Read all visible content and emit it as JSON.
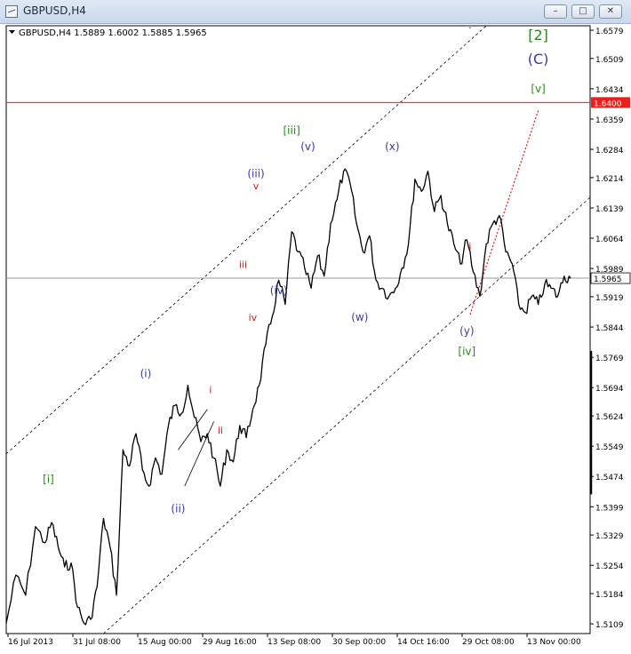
{
  "window": {
    "title": "GBPUSD,H4",
    "controls": {
      "minimize_icon": "minimize-icon",
      "maximize_icon": "maximize-icon",
      "close_icon": "close-icon"
    }
  },
  "chart_data": {
    "type": "candlestick",
    "info_line": "GBPUSD,H4  1.5889 1.6002 1.5885 1.5965",
    "ylim": [
      1.5085,
      1.659
    ],
    "y_ticks": [
      "1.5109",
      "1.5184",
      "1.5254",
      "1.5329",
      "1.5399",
      "1.5474",
      "1.5549",
      "1.5624",
      "1.5694",
      "1.5769",
      "1.5844",
      "1.5919",
      "1.5989",
      "1.6064",
      "1.6139",
      "1.6214",
      "1.6284",
      "1.6359",
      "1.6434",
      "1.6509",
      "1.6579"
    ],
    "x_ticks": [
      "16 Jul 2013",
      "31 Jul 08:00",
      "15 Aug 00:00",
      "29 Aug 16:00",
      "13 Sep 08:00",
      "30 Sep 00:00",
      "14 Oct 16:00",
      "29 Oct 08:00",
      "13 Nov 00:00"
    ],
    "current_price": "1.5965",
    "resistance_level": "1.6400",
    "colors": {
      "price": "#000000",
      "resistance": "#e8211c",
      "current": "#9a9a9a",
      "projection": "#d21f1f",
      "wave_major": "#2a8a1a",
      "wave_minor": "#3a3aa0",
      "wave_sub": "#c0201c"
    },
    "price_path": [
      [
        0,
        1.511
      ],
      [
        1.5,
        1.523
      ],
      [
        3,
        1.518
      ],
      [
        4.5,
        1.535
      ],
      [
        6,
        1.531
      ],
      [
        7,
        1.536
      ],
      [
        8,
        1.53
      ],
      [
        9,
        1.525
      ],
      [
        10,
        1.526
      ],
      [
        11,
        1.515
      ],
      [
        12,
        1.511
      ],
      [
        13,
        1.512
      ],
      [
        14,
        1.52
      ],
      [
        15,
        1.537
      ],
      [
        16,
        1.53
      ],
      [
        17,
        1.518
      ],
      [
        18,
        1.554
      ],
      [
        19,
        1.55
      ],
      [
        20,
        1.558
      ],
      [
        21,
        1.549
      ],
      [
        22,
        1.545
      ],
      [
        23,
        1.552
      ],
      [
        24,
        1.548
      ],
      [
        25,
        1.56
      ],
      [
        26,
        1.565
      ],
      [
        27,
        1.563
      ],
      [
        28,
        1.57
      ],
      [
        29,
        1.562
      ],
      [
        30,
        1.556
      ],
      [
        31,
        1.558
      ],
      [
        32,
        1.552
      ],
      [
        33,
        1.545
      ],
      [
        34,
        1.554
      ],
      [
        35,
        1.551
      ],
      [
        36,
        1.56
      ],
      [
        37,
        1.557
      ],
      [
        38,
        1.564
      ],
      [
        39,
        1.57
      ],
      [
        40,
        1.58
      ],
      [
        41,
        1.587
      ],
      [
        42,
        1.596
      ],
      [
        43,
        1.59
      ],
      [
        44,
        1.608
      ],
      [
        45,
        1.603
      ],
      [
        46,
        1.599
      ],
      [
        47,
        1.594
      ],
      [
        48,
        1.602
      ],
      [
        49,
        1.597
      ],
      [
        50,
        1.61
      ],
      [
        51,
        1.616
      ],
      [
        52,
        1.623
      ],
      [
        53,
        1.62
      ],
      [
        54,
        1.61
      ],
      [
        55,
        1.603
      ],
      [
        56,
        1.607
      ],
      [
        57,
        1.596
      ],
      [
        58,
        1.594
      ],
      [
        59,
        1.592
      ],
      [
        60,
        1.594
      ],
      [
        61,
        1.599
      ],
      [
        62,
        1.605
      ],
      [
        63,
        1.621
      ],
      [
        64,
        1.618
      ],
      [
        65,
        1.623
      ],
      [
        66,
        1.613
      ],
      [
        67,
        1.617
      ],
      [
        68,
        1.61
      ],
      [
        69,
        1.605
      ],
      [
        70,
        1.6
      ],
      [
        71,
        1.606
      ],
      [
        72,
        1.598
      ],
      [
        73,
        1.592
      ],
      [
        74,
        1.605
      ],
      [
        75,
        1.61
      ],
      [
        76,
        1.612
      ],
      [
        77,
        1.603
      ],
      [
        78,
        1.6
      ],
      [
        79,
        1.59
      ],
      [
        80,
        1.588
      ],
      [
        81,
        1.592
      ],
      [
        82,
        1.59
      ],
      [
        83,
        1.595
      ],
      [
        84,
        1.594
      ],
      [
        85,
        1.592
      ],
      [
        86,
        1.597
      ],
      [
        87,
        1.5965
      ]
    ],
    "x_units_note": "",
    "labels": [
      {
        "text": "[2]",
        "x": 82.0,
        "y": 1.6555,
        "class": "major",
        "size": 16
      },
      {
        "text": "(C)",
        "x": 82.0,
        "y": 1.6495,
        "class": "minor",
        "size": 16
      },
      {
        "text": "[v]",
        "x": 82.0,
        "y": 1.6425,
        "class": "major",
        "size": 12
      },
      {
        "text": "[iii]",
        "x": 44.0,
        "y": 1.6322,
        "class": "major",
        "size": 12
      },
      {
        "text": "(v)",
        "x": 46.5,
        "y": 1.6282,
        "class": "minor",
        "size": 12
      },
      {
        "text": "(x)",
        "x": 59.5,
        "y": 1.6282,
        "class": "minor",
        "size": 12
      },
      {
        "text": "(iii)",
        "x": 38.5,
        "y": 1.6215,
        "class": "minor",
        "size": 12
      },
      {
        "text": "v",
        "x": 38.5,
        "y": 1.6185,
        "class": "sub",
        "size": 11
      },
      {
        "text": "iii",
        "x": 36.5,
        "y": 1.599,
        "class": "sub",
        "size": 11
      },
      {
        "text": "(iv)",
        "x": 42.0,
        "y": 1.5925,
        "class": "minor",
        "size": 12
      },
      {
        "text": "iv",
        "x": 38.0,
        "y": 1.586,
        "class": "sub",
        "size": 11
      },
      {
        "text": "(w)",
        "x": 54.5,
        "y": 1.586,
        "class": "minor",
        "size": 12
      },
      {
        "text": "i",
        "x": 71.5,
        "y": 1.6035,
        "class": "sub",
        "size": 11
      },
      {
        "text": "(y)",
        "x": 71.0,
        "y": 1.5825,
        "class": "minor",
        "size": 12
      },
      {
        "text": "[iv]",
        "x": 71.0,
        "y": 1.5775,
        "class": "major",
        "size": 12
      },
      {
        "text": "(i)",
        "x": 21.5,
        "y": 1.572,
        "class": "minor",
        "size": 12
      },
      {
        "text": "i",
        "x": 31.5,
        "y": 1.568,
        "class": "sub",
        "size": 11
      },
      {
        "text": "ii",
        "x": 33.0,
        "y": 1.558,
        "class": "sub",
        "size": 11
      },
      {
        "text": "(ii)",
        "x": 26.5,
        "y": 1.5385,
        "class": "minor",
        "size": 12
      },
      {
        "text": "[i]",
        "x": 6.5,
        "y": 1.5458,
        "class": "major",
        "size": 12
      }
    ],
    "channel_lines": [
      {
        "p1": [
          0,
          1.553
        ],
        "p2": [
          74,
          1.659
        ],
        "style": "dashed"
      },
      {
        "p1": [
          15,
          1.5085
        ],
        "p2": [
          90,
          1.6165
        ],
        "style": "dashed"
      },
      {
        "p1": [
          26.5,
          1.554
        ],
        "p2": [
          31,
          1.564
        ],
        "style": "solid"
      },
      {
        "p1": [
          27.5,
          1.545
        ],
        "p2": [
          32,
          1.561
        ],
        "style": "solid"
      }
    ],
    "projection": {
      "p1": [
        71.5,
        1.5875
      ],
      "p2": [
        82,
        1.638
      ]
    }
  }
}
